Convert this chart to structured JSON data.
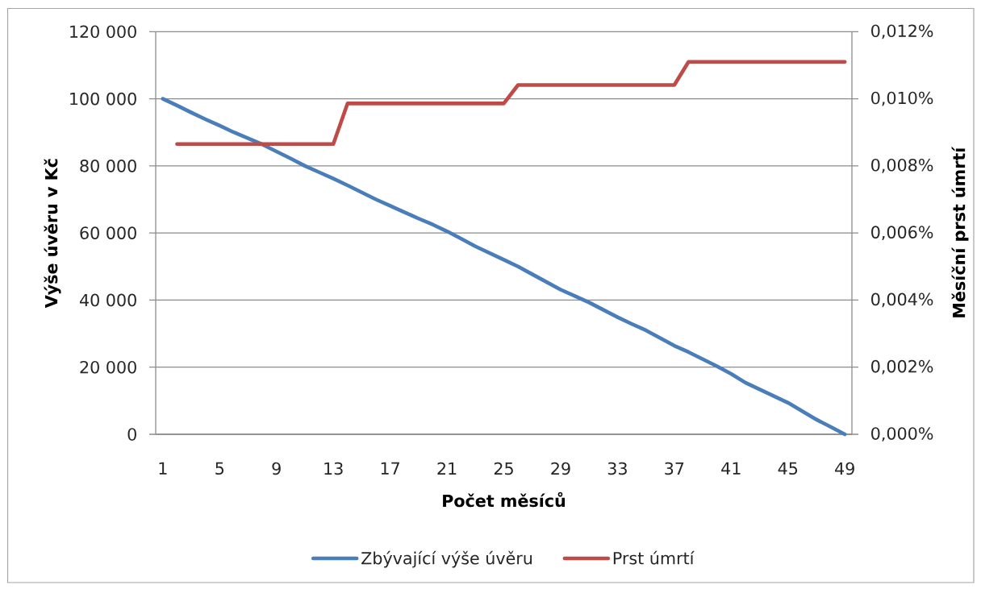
{
  "chart_data": {
    "type": "line",
    "xlabel": "Počet měsíců",
    "ylabel": "Výše úvěru v Kč",
    "y2label": "Měsíční prst úmrtí",
    "categories": [
      "1",
      null,
      null,
      null,
      "5",
      null,
      null,
      null,
      "9",
      null,
      null,
      null,
      "13",
      null,
      null,
      null,
      "17",
      null,
      null,
      null,
      "21",
      null,
      null,
      null,
      "25",
      null,
      null,
      null,
      "29",
      null,
      null,
      null,
      "33",
      null,
      null,
      null,
      "37",
      null,
      null,
      null,
      "41",
      null,
      null,
      null,
      "45",
      null,
      null,
      null,
      "49"
    ],
    "ylim": [
      0,
      120000
    ],
    "yticks": [
      0,
      {
        "value": 20000,
        "label": "20 000"
      },
      {
        "value": 40000,
        "label": "40 000"
      },
      {
        "value": 60000,
        "label": "60 000"
      },
      {
        "value": 80000,
        "label": "80 000"
      },
      {
        "value": 100000,
        "label": "100 000"
      },
      {
        "value": 120000,
        "label": "120 000"
      }
    ],
    "y2lim": [
      0,
      0.012
    ],
    "y2ticks": [
      {
        "value": 0,
        "label": "0,000%"
      },
      {
        "value": 0.002,
        "label": "0,002%"
      },
      {
        "value": 0.004,
        "label": "0,004%"
      },
      {
        "value": 0.006,
        "label": "0,006%"
      },
      {
        "value": 0.008,
        "label": "0,008%"
      },
      {
        "value": 0.01,
        "label": "0,010%"
      },
      {
        "value": 0.012,
        "label": "0,012%"
      }
    ],
    "series": [
      {
        "name": "Zbývající výše úvěru",
        "color": "#4a7ebb",
        "values": [
          100000,
          98000,
          95900,
          93900,
          92000,
          90000,
          88200,
          86400,
          84300,
          82200,
          80000,
          78100,
          76200,
          74200,
          72100,
          70000,
          68100,
          66200,
          64300,
          62500,
          60500,
          58300,
          56000,
          54000,
          52000,
          50000,
          47700,
          45400,
          43100,
          41200,
          39300,
          37100,
          34900,
          32900,
          31000,
          28700,
          26400,
          24500,
          22400,
          20300,
          18000,
          15400,
          13400,
          11400,
          9400,
          6900,
          4400,
          2200,
          0
        ]
      },
      {
        "name": "Prst úmrtí",
        "color": "#be4b48",
        "axis": "y2",
        "values": [
          null,
          0.00865,
          0.00865,
          0.00865,
          0.00865,
          0.00865,
          0.00865,
          0.00865,
          0.00865,
          0.00865,
          0.00865,
          0.00865,
          0.00865,
          0.00986,
          0.00986,
          0.00986,
          0.00986,
          0.00986,
          0.00986,
          0.00986,
          0.00986,
          0.00986,
          0.00986,
          0.00986,
          0.00986,
          0.01041,
          0.01041,
          0.01041,
          0.01041,
          0.01041,
          0.01041,
          0.01041,
          0.01041,
          0.01041,
          0.01041,
          0.01041,
          0.01041,
          0.0111,
          0.0111,
          0.0111,
          0.0111,
          0.0111,
          0.0111,
          0.0111,
          0.0111,
          0.0111,
          0.0111,
          0.0111,
          0.0111
        ]
      }
    ],
    "grid": "y",
    "legend": "bottom"
  }
}
